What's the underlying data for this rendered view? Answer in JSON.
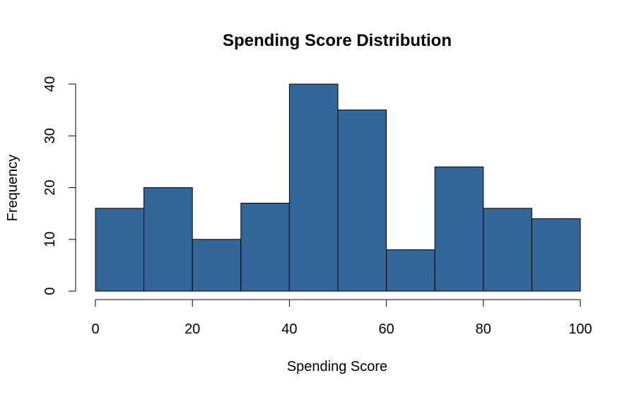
{
  "chart_data": {
    "type": "bar",
    "subtype": "histogram",
    "title": "Spending Score Distribution",
    "xlabel": "Spending Score",
    "ylabel": "Frequency",
    "bin_edges": [
      0,
      10,
      20,
      30,
      40,
      50,
      60,
      70,
      80,
      90,
      100
    ],
    "values": [
      16,
      20,
      10,
      17,
      40,
      35,
      8,
      24,
      16,
      14
    ],
    "xlim": [
      0,
      100
    ],
    "ylim": [
      0,
      40
    ],
    "x_ticks": [
      0,
      20,
      40,
      60,
      80,
      100
    ],
    "y_ticks": [
      0,
      10,
      20,
      30,
      40
    ],
    "grid": false,
    "bar_color": "#336699",
    "bar_edge_color": "#000000"
  }
}
